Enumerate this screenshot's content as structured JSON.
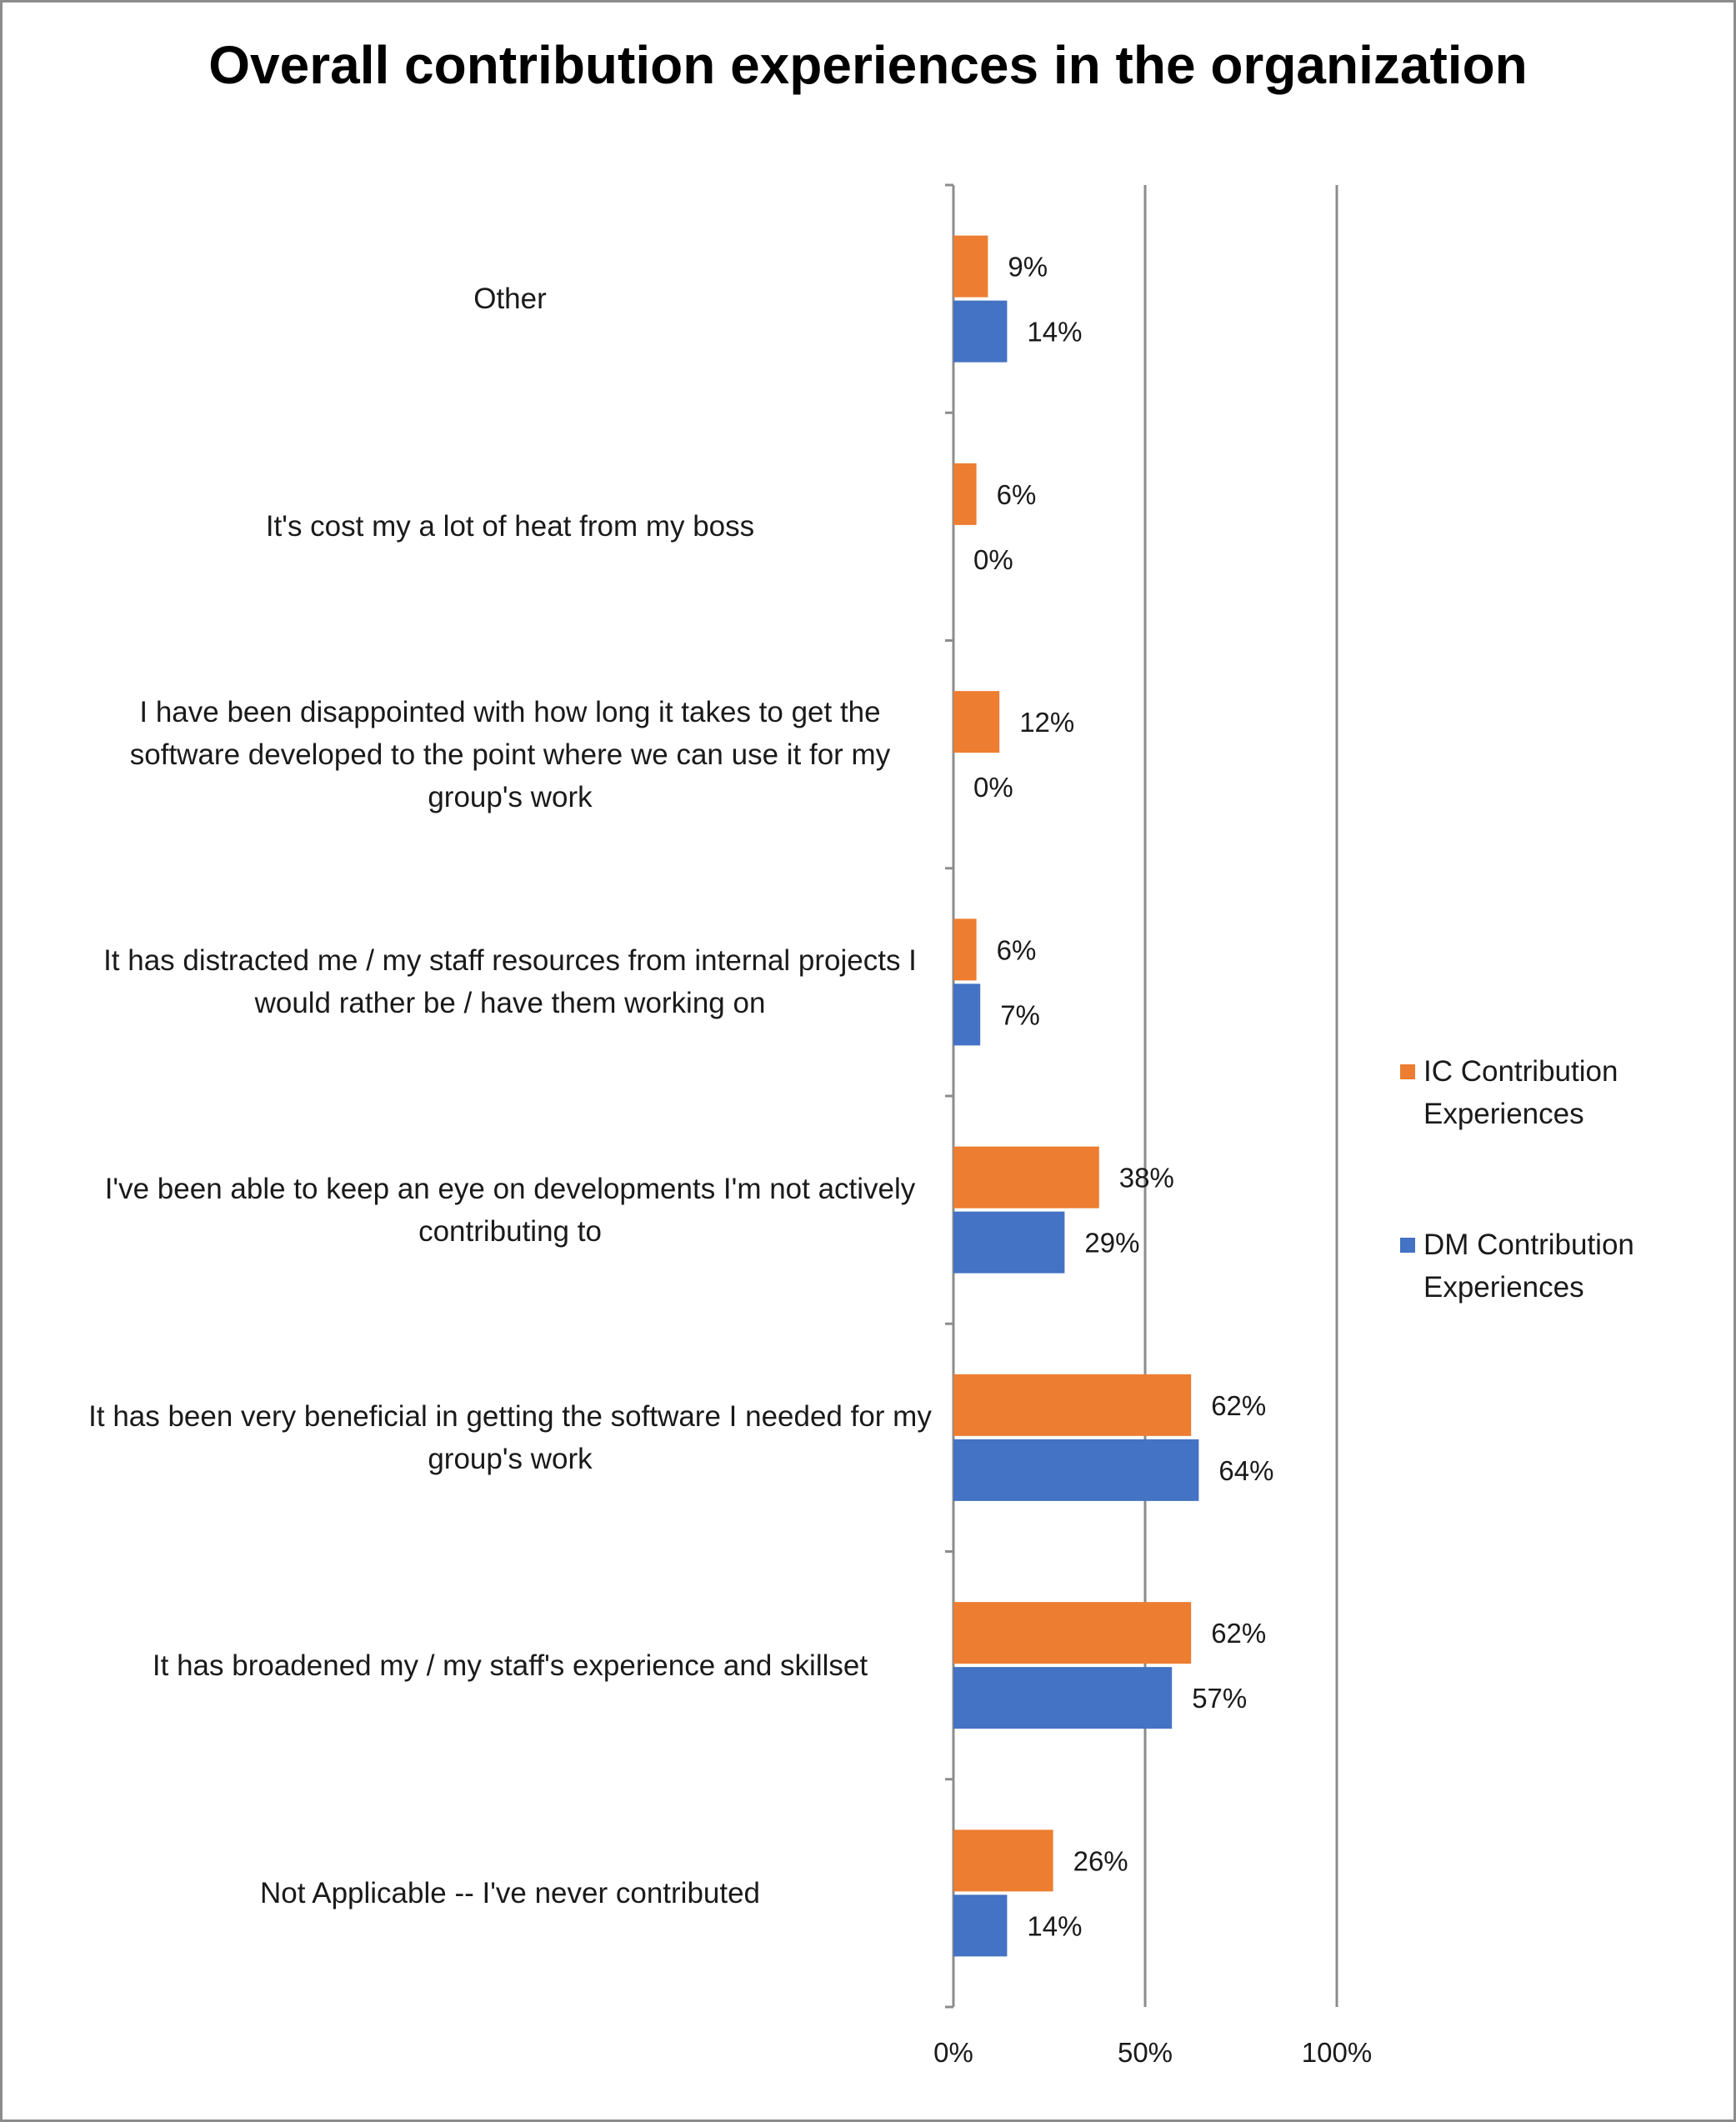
{
  "chart_data": {
    "type": "bar",
    "orientation": "horizontal",
    "title": "Overall contribution experiences in the organization",
    "categories": [
      "Other",
      "It's cost my a  lot of heat from my boss",
      "I have been disappointed with how long it takes to get the software developed to the point where we can use it for my group's work",
      "It has distracted me / my staff resources from internal projects I would rather be /  have them working on",
      "I've been able to keep an eye on developments I'm not actively contributing to",
      "It has been very beneficial in getting the software I needed for my group's work",
      "It has broadened my / my staff's experience and skillset",
      "Not Applicable -- I've never contributed"
    ],
    "series": [
      {
        "name": "IC Contribution Experiences",
        "color": "#ed7d31",
        "values": [
          9,
          6,
          12,
          6,
          38,
          62,
          62,
          26
        ],
        "labels": [
          "9%",
          "6%",
          "12%",
          "6%",
          "38%",
          "62%",
          "62%",
          "26%"
        ]
      },
      {
        "name": "DM Contribution Experiences",
        "color": "#4472c4",
        "values": [
          14,
          0,
          0,
          7,
          29,
          64,
          57,
          14
        ],
        "labels": [
          "14%",
          "0%",
          "0%",
          "7%",
          "29%",
          "64%",
          "57%",
          "14%"
        ]
      }
    ],
    "xlim": [
      0,
      100
    ],
    "x_ticks": [
      "0%",
      "50%",
      "100%"
    ],
    "grid": true,
    "legend_position": "right"
  }
}
